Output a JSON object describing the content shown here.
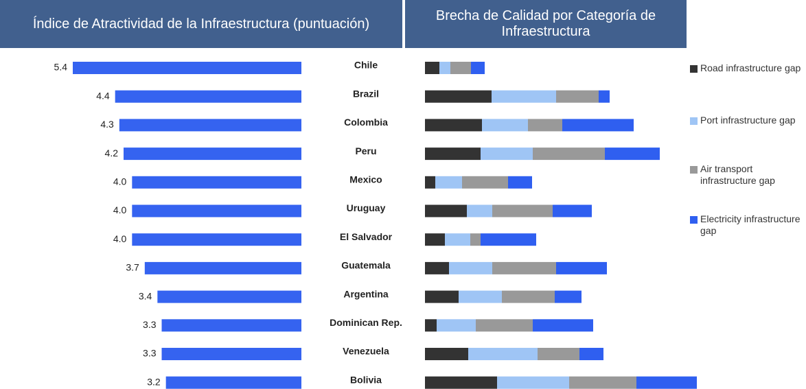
{
  "chart_data": [
    {
      "type": "hbar-left",
      "title": "Índice de Atractividad de la Infraestructura (puntuación)",
      "categories": [
        "Chile",
        "Brazil",
        "Colombia",
        "Peru",
        "Mexico",
        "Uruguay",
        "El Salvador",
        "Guatemala",
        "Argentina",
        "Dominican Rep.",
        "Venezuela",
        "Bolivia"
      ],
      "values": [
        5.4,
        4.4,
        4.3,
        4.2,
        4.0,
        4.0,
        4.0,
        3.7,
        3.4,
        3.3,
        3.3,
        3.2
      ],
      "value_labels": [
        "5.4",
        "4.4",
        "4.3",
        "4.2",
        "4.0",
        "4.0",
        "4.0",
        "3.7",
        "3.4",
        "3.3",
        "3.3",
        "3.2"
      ],
      "color": "#3563f0"
    },
    {
      "type": "stacked-hbar",
      "title": "Brecha de Calidad por Categoría de Infraestructura",
      "legend": "right",
      "series": [
        {
          "name": "Road infrastructure gap",
          "color": "#333333",
          "values": [
            2.1,
            9.7,
            8.3,
            8.1,
            1.5,
            6.1,
            2.9,
            3.5,
            4.9,
            1.7,
            6.3,
            10.5
          ]
        },
        {
          "name": "Port infrastructure gap",
          "color": "#9fc5f5",
          "values": [
            1.6,
            9.4,
            6.7,
            7.6,
            3.9,
            3.7,
            3.7,
            6.3,
            6.3,
            5.7,
            10.1,
            10.5
          ]
        },
        {
          "name": "Air transport infrastructure gap",
          "color": "#999999",
          "values": [
            3.0,
            6.2,
            5.0,
            10.5,
            6.7,
            8.8,
            1.5,
            9.3,
            7.7,
            8.3,
            6.1,
            9.8
          ]
        },
        {
          "name": "Electricity infrastructure gap",
          "color": "#2f5ff0",
          "values": [
            2.0,
            1.6,
            10.4,
            8.0,
            3.5,
            5.7,
            8.1,
            7.4,
            3.9,
            8.8,
            3.5,
            8.8
          ]
        }
      ]
    }
  ]
}
